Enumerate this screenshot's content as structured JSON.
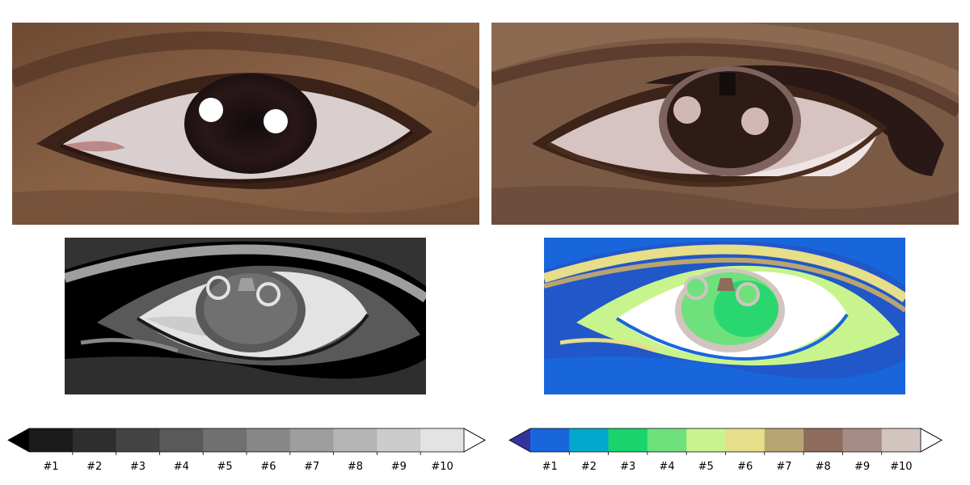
{
  "figure": {
    "panels": [
      {
        "id": "original",
        "description_icon": "eye-photo-icon"
      },
      {
        "id": "quantized",
        "description_icon": "eye-quantized-icon"
      },
      {
        "id": "grayscale",
        "description_icon": "eye-grayscale-icon"
      },
      {
        "id": "terrain",
        "description_icon": "eye-terrain-icon"
      }
    ]
  },
  "colorbars": [
    {
      "name": "gray",
      "colors": [
        "#1a1a1a",
        "#2e2e2e",
        "#434343",
        "#595959",
        "#707070",
        "#878787",
        "#9e9e9e",
        "#b5b5b5",
        "#cccccc",
        "#e3e3e3"
      ],
      "under_color": "#000000",
      "over_color": "#ffffff",
      "labels": [
        "#1",
        "#2",
        "#3",
        "#4",
        "#5",
        "#6",
        "#7",
        "#8",
        "#9",
        "#10"
      ]
    },
    {
      "name": "terrain",
      "colors": [
        "#1966dc",
        "#00a9cd",
        "#19d46c",
        "#6ee17c",
        "#c8f48e",
        "#e6de88",
        "#b9a571",
        "#8d6c5c",
        "#a58c85",
        "#d2c4bf"
      ],
      "under_color": "#333399",
      "over_color": "#ffffff",
      "labels": [
        "#1",
        "#2",
        "#3",
        "#4",
        "#5",
        "#6",
        "#7",
        "#8",
        "#9",
        "#10"
      ]
    }
  ]
}
